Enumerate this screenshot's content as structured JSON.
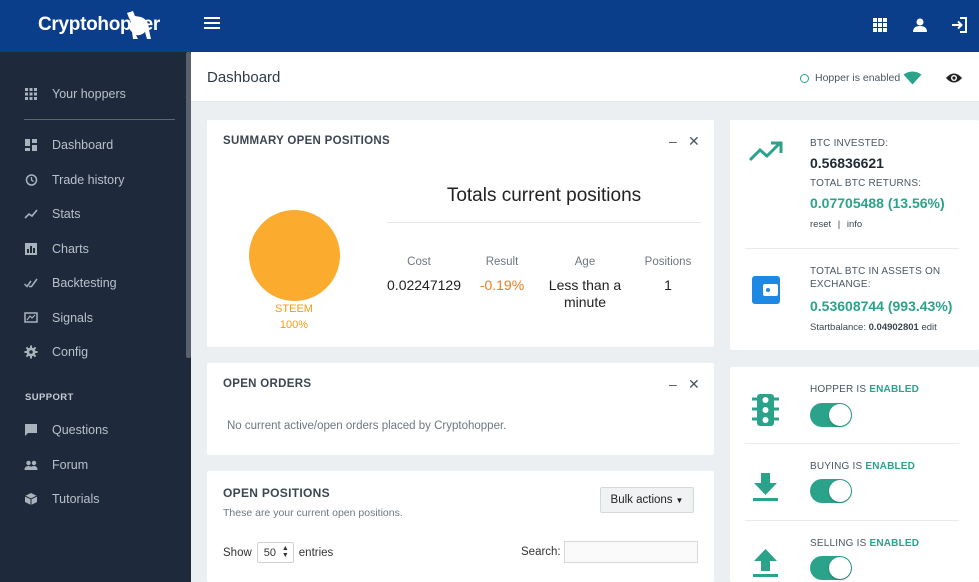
{
  "app": {
    "logo": "Cryptohopper"
  },
  "sidebar": {
    "top_item": "Your hoppers",
    "items": [
      {
        "label": "Dashboard",
        "icon": "dashboard-icon"
      },
      {
        "label": "Trade history",
        "icon": "history-icon"
      },
      {
        "label": "Stats",
        "icon": "stats-icon"
      },
      {
        "label": "Charts",
        "icon": "charts-icon"
      },
      {
        "label": "Backtesting",
        "icon": "backtesting-icon"
      },
      {
        "label": "Signals",
        "icon": "signals-icon"
      },
      {
        "label": "Config",
        "icon": "gear-icon"
      }
    ],
    "support_title": "SUPPORT",
    "support_items": [
      {
        "label": "Questions",
        "icon": "chat-icon"
      },
      {
        "label": "Forum",
        "icon": "group-icon"
      },
      {
        "label": "Tutorials",
        "icon": "box-icon"
      }
    ]
  },
  "header": {
    "title": "Dashboard",
    "hopper_status": "Hopper is enabled"
  },
  "summary": {
    "title": "SUMMARY OPEN POSITIONS",
    "pie_label": "STEEM",
    "pie_percent": "100%",
    "totals_title": "Totals current positions",
    "columns": [
      {
        "head": "Cost",
        "value": "0.02247129"
      },
      {
        "head": "Result",
        "value": "-0.19%"
      },
      {
        "head": "Age",
        "value": "Less than a minute"
      },
      {
        "head": "Positions",
        "value": "1"
      }
    ]
  },
  "open_orders": {
    "title": "OPEN ORDERS",
    "empty_message": "No current active/open orders placed by Cryptohopper."
  },
  "open_positions": {
    "title": "OPEN POSITIONS",
    "subtitle": "These are your current open positions.",
    "bulk_actions": "Bulk actions",
    "show_label": "Show",
    "page_size": "50",
    "entries_label": "entries",
    "search_label": "Search:",
    "search_value": ""
  },
  "btc": {
    "invested_label": "BTC INVESTED:",
    "invested_value": "0.56836621",
    "returns_label": "TOTAL BTC RETURNS:",
    "returns_value": "0.07705488 (13.56%)",
    "reset_link": "reset",
    "separator": "|",
    "info_link": "info",
    "assets_label_1": "TOTAL BTC IN ASSETS ON",
    "assets_label_2": "EXCHANGE:",
    "assets_value": "0.53608744 (993.43%)",
    "startbalance_label": "Startbalance:",
    "startbalance_value": "0.04902801",
    "edit_link": "edit"
  },
  "toggles": [
    {
      "prefix": "HOPPER IS",
      "state": "ENABLED",
      "icon": "traffic-light-icon"
    },
    {
      "prefix": "BUYING IS",
      "state": "ENABLED",
      "icon": "download-icon"
    },
    {
      "prefix": "SELLING IS",
      "state": "ENABLED",
      "icon": "upload-icon"
    }
  ],
  "colors": {
    "topbar": "#0a3d8a",
    "sidebar": "#1e2a3b",
    "accent": "#2aa38a",
    "pie": "#fbab2d",
    "result_negative": "#e67e22",
    "wallet_blue": "#1e88e5"
  }
}
